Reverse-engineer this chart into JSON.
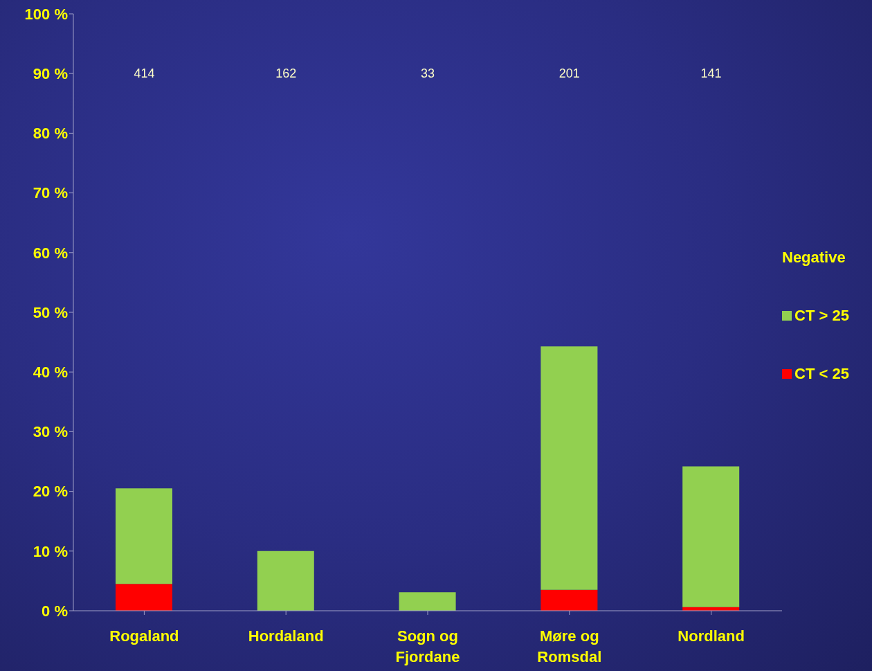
{
  "chart_data": {
    "type": "bar",
    "stacked": true,
    "categories": [
      "Rogaland",
      "Hordaland",
      "Sogn og Fjordane",
      "Møre og Romsdal",
      "Nordland"
    ],
    "series": [
      {
        "name": "CT < 25",
        "color": "#ff0000",
        "values": [
          4.5,
          0,
          0,
          3.5,
          0.6
        ]
      },
      {
        "name": "CT > 25",
        "color": "#92d050",
        "values": [
          16,
          10,
          3.1,
          40.8,
          23.6
        ]
      }
    ],
    "legend_title": "Negative",
    "legend": "right",
    "grid": false,
    "ylim": [
      0,
      100
    ],
    "yticks": [
      {
        "value": 0,
        "label": "0 %"
      },
      {
        "value": 10,
        "label": "10 %"
      },
      {
        "value": 20,
        "label": "20 %"
      },
      {
        "value": 30,
        "label": "30 %"
      },
      {
        "value": 40,
        "label": "40 %"
      },
      {
        "value": 50,
        "label": "50 %"
      },
      {
        "value": 60,
        "label": "60 %"
      },
      {
        "value": 70,
        "label": "70 %"
      },
      {
        "value": 80,
        "label": "80 %"
      },
      {
        "value": 90,
        "label": "90 %"
      },
      {
        "value": 100,
        "label": "100 %"
      }
    ],
    "annotations": [
      "414",
      "162",
      "33",
      "201",
      "141"
    ]
  }
}
